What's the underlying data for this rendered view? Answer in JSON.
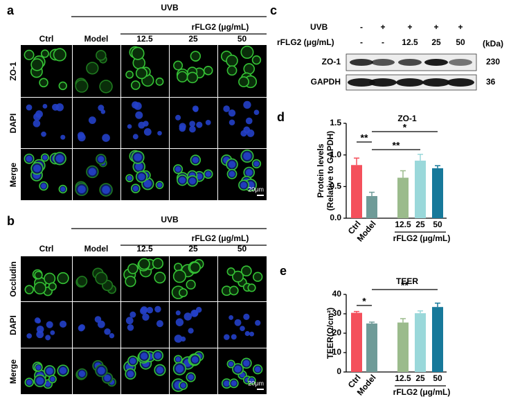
{
  "panels": {
    "a": {
      "label": "a",
      "group": "UVB",
      "treatment": "rFLG2 (μg/mL)",
      "columns": [
        "Ctrl",
        "Model",
        "12.5",
        "25",
        "50"
      ],
      "rows": [
        "ZO-1",
        "DAPI",
        "Merge"
      ],
      "scale_bar": "20μm"
    },
    "b": {
      "label": "b",
      "group": "UVB",
      "treatment": "rFLG2 (μg/mL)",
      "columns": [
        "Ctrl",
        "Model",
        "12.5",
        "25",
        "50"
      ],
      "rows": [
        "Occludin",
        "DAPI",
        "Merge"
      ],
      "scale_bar": "20μm"
    },
    "c": {
      "label": "c",
      "conditions": [
        {
          "name": "UVB",
          "values": [
            "-",
            "+",
            "+",
            "+",
            "+"
          ]
        },
        {
          "name": "rFLG2 (μg/mL)",
          "values": [
            "-",
            "-",
            "12.5",
            "25",
            "50"
          ]
        }
      ],
      "unit": "(kDa)",
      "bands": [
        {
          "name": "ZO-1",
          "kda": "230"
        },
        {
          "name": "GAPDH",
          "kda": "36"
        }
      ]
    }
  },
  "charts": [
    {
      "label": "d",
      "type": "bar",
      "title": "ZO-1",
      "y_label": [
        "Protein levels",
        "(Relative to GAPDH)"
      ],
      "categories": [
        "Ctrl",
        "Model",
        "12.5",
        "25",
        "50"
      ],
      "values": [
        0.84,
        0.35,
        0.64,
        0.91,
        0.79
      ],
      "errors": [
        0.11,
        0.06,
        0.11,
        0.1,
        0.04
      ],
      "colors": [
        "#f4505c",
        "#6f9b98",
        "#9bbb8c",
        "#9ad8da",
        "#17799a"
      ],
      "ylim": [
        0,
        1.5
      ],
      "yticks": [
        {
          "value": 0,
          "label": "0.0"
        },
        {
          "value": 0.5,
          "label": "0.5"
        },
        {
          "value": 1,
          "label": "1.0"
        },
        {
          "value": 1.5,
          "label": "1.5"
        }
      ],
      "group": {
        "label": "rFLG2 (μg/mL)",
        "members": [
          2,
          3,
          4
        ]
      },
      "significance": [
        {
          "between": [
            0,
            1
          ],
          "label": "**"
        },
        {
          "between": [
            1,
            4
          ],
          "label": "*"
        },
        {
          "between": [
            1,
            3
          ],
          "label": "**"
        }
      ]
    },
    {
      "label": "e",
      "type": "bar",
      "title": "TEER",
      "y_label": [
        "TEER(Ω/cm²)"
      ],
      "categories": [
        "Ctrl",
        "Model",
        "12.5",
        "25",
        "50"
      ],
      "values": [
        30.5,
        25,
        25.5,
        30.3,
        33.5
      ],
      "errors": [
        0.7,
        0.7,
        2,
        1.2,
        2
      ],
      "colors": [
        "#f4505c",
        "#6f9b98",
        "#9bbb8c",
        "#9ad8da",
        "#17799a"
      ],
      "ylim": [
        0,
        40
      ],
      "yticks": [
        0,
        10,
        20,
        30,
        40
      ],
      "group": {
        "label": "rFLG2 (μg/mL)",
        "members": [
          2,
          3,
          4
        ]
      },
      "significance": [
        {
          "between": [
            0,
            1
          ],
          "label": "*"
        },
        {
          "between": [
            1,
            4
          ],
          "label": "**"
        }
      ]
    }
  ]
}
